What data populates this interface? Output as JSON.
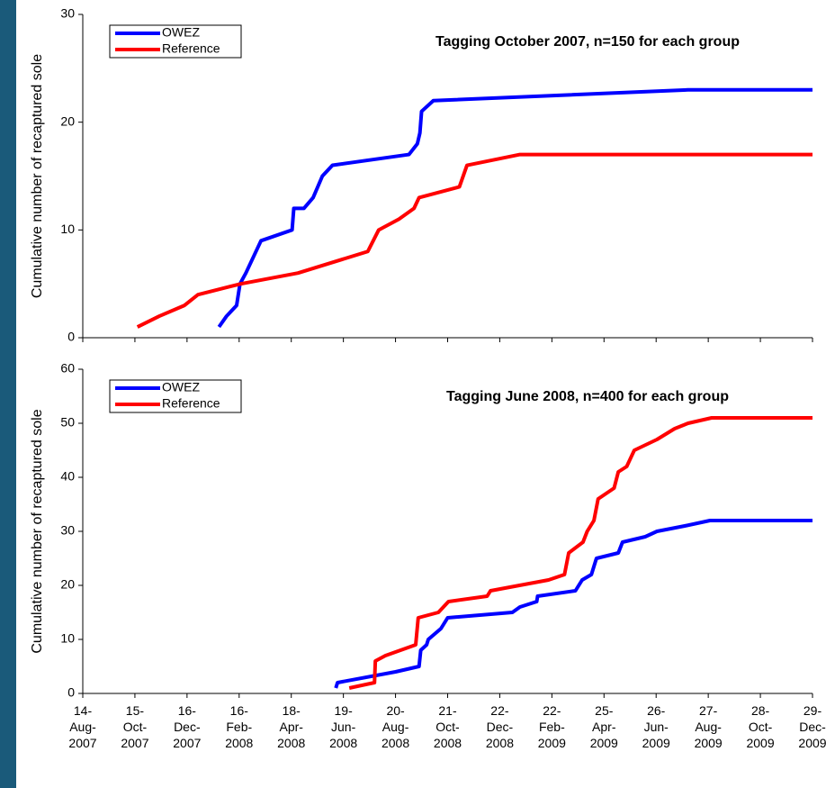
{
  "chart_data": [
    {
      "type": "line",
      "title": "Tagging October 2007, n=150 for each group",
      "ylabel": "Cumulative number of recaptured sole",
      "ylim": [
        0,
        30
      ],
      "yticks": [
        0,
        10,
        20,
        30
      ],
      "xlim": [
        "2007-08-14",
        "2009-12-29"
      ],
      "series": [
        {
          "name": "OWEZ",
          "color": "#0000ff",
          "x": [
            "2008-01-23",
            "2008-02-01",
            "2008-02-13",
            "2008-02-17",
            "2008-02-24",
            "2008-03-13",
            "2008-04-19",
            "2008-04-21",
            "2008-05-03",
            "2008-05-14",
            "2008-05-25",
            "2008-06-06",
            "2008-09-05",
            "2008-09-15",
            "2008-09-18",
            "2008-09-20",
            "2008-10-04",
            "2009-08-03",
            "2009-12-29"
          ],
          "values": [
            1,
            2,
            3,
            5,
            6,
            9,
            10,
            12,
            12,
            13,
            15,
            16,
            17,
            18,
            19,
            21,
            22,
            23,
            23
          ]
        },
        {
          "name": "Reference",
          "color": "#ff0000",
          "x": [
            "2007-10-18",
            "2007-11-13",
            "2007-12-13",
            "2007-12-29",
            "2008-02-18",
            "2008-04-26",
            "2008-07-18",
            "2008-07-31",
            "2008-08-24",
            "2008-09-11",
            "2008-09-17",
            "2008-11-04",
            "2008-11-13",
            "2009-01-15",
            "2009-12-29"
          ],
          "values": [
            1,
            2,
            3,
            4,
            5,
            6,
            8,
            10,
            11,
            12,
            13,
            14,
            16,
            17,
            17
          ]
        }
      ]
    },
    {
      "type": "line",
      "title": "Tagging June 2008, n=400 for each group",
      "ylabel": "Cumulative number of recaptured sole",
      "ylim": [
        0,
        60
      ],
      "yticks": [
        0,
        10,
        20,
        30,
        40,
        50,
        60
      ],
      "xlim": [
        "2007-08-14",
        "2009-12-29"
      ],
      "xticks": [
        {
          "value": "2007-08-14",
          "label": "14-Aug-2007"
        },
        {
          "value": "2007-10-15",
          "label": "15-Oct-2007"
        },
        {
          "value": "2007-12-16",
          "label": "16-Dec-2007"
        },
        {
          "value": "2008-02-16",
          "label": "16-Feb-2008"
        },
        {
          "value": "2008-04-18",
          "label": "18-Apr-2008"
        },
        {
          "value": "2008-06-19",
          "label": "19-Jun-2008"
        },
        {
          "value": "2008-08-20",
          "label": "20-Aug-2008"
        },
        {
          "value": "2008-10-21",
          "label": "21-Oct-2008"
        },
        {
          "value": "2008-12-22",
          "label": "22-Dec-2008"
        },
        {
          "value": "2009-02-22",
          "label": "22-Feb-2009"
        },
        {
          "value": "2009-04-25",
          "label": "25-Apr-2009"
        },
        {
          "value": "2009-06-26",
          "label": "26-Jun-2009"
        },
        {
          "value": "2009-08-27",
          "label": "27-Aug-2009"
        },
        {
          "value": "2009-10-28",
          "label": "28-Oct-2009"
        },
        {
          "value": "2009-12-29",
          "label": "29-Dec-2009"
        }
      ],
      "series": [
        {
          "name": "OWEZ",
          "color": "#0000ff",
          "x": [
            "2008-06-10",
            "2008-06-12",
            "2008-08-20",
            "2008-09-17",
            "2008-09-19",
            "2008-09-26",
            "2008-09-28",
            "2008-10-13",
            "2008-10-21",
            "2009-01-06",
            "2009-01-15",
            "2009-02-04",
            "2009-02-05",
            "2009-03-22",
            "2009-03-30",
            "2009-04-10",
            "2009-04-16",
            "2009-05-12",
            "2009-05-17",
            "2009-06-13",
            "2009-06-27",
            "2009-07-30",
            "2009-08-29",
            "2009-12-29"
          ],
          "values": [
            1,
            2,
            4,
            5,
            8,
            9,
            10,
            12,
            14,
            15,
            16,
            17,
            18,
            19,
            21,
            22,
            25,
            26,
            28,
            29,
            30,
            31,
            32,
            32
          ]
        },
        {
          "name": "Reference",
          "color": "#ff0000",
          "x": [
            "2008-06-26",
            "2008-07-26",
            "2008-07-27",
            "2008-08-08",
            "2008-09-13",
            "2008-09-16",
            "2008-10-10",
            "2008-10-22",
            "2008-12-07",
            "2008-12-11",
            "2009-02-18",
            "2009-03-09",
            "2009-03-14",
            "2009-03-31",
            "2009-04-05",
            "2009-04-13",
            "2009-04-18",
            "2009-05-07",
            "2009-05-12",
            "2009-05-22",
            "2009-05-31",
            "2009-06-27",
            "2009-07-18",
            "2009-08-03",
            "2009-08-31",
            "2009-12-29"
          ],
          "values": [
            1,
            2,
            6,
            7,
            9,
            14,
            15,
            17,
            18,
            19,
            21,
            22,
            26,
            28,
            30,
            32,
            36,
            38,
            41,
            42,
            45,
            47,
            49,
            50,
            51,
            51
          ]
        }
      ]
    }
  ]
}
